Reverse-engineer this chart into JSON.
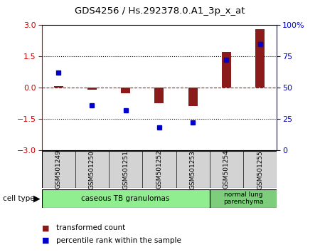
{
  "title": "GDS4256 / Hs.292378.0.A1_3p_x_at",
  "samples": [
    "GSM501249",
    "GSM501250",
    "GSM501251",
    "GSM501252",
    "GSM501253",
    "GSM501254",
    "GSM501255"
  ],
  "transformed_count": [
    0.07,
    -0.1,
    -0.28,
    -0.75,
    -0.9,
    1.7,
    2.8
  ],
  "percentile_rank": [
    62,
    36,
    32,
    18,
    22,
    72,
    85
  ],
  "ylim_left": [
    -3,
    3
  ],
  "ylim_right": [
    0,
    100
  ],
  "bar_color": "#8b1a1a",
  "point_color": "#0000cc",
  "zero_line_color": "#cc0000",
  "tick_color_left": "#cc0000",
  "tick_color_right": "#0000cc",
  "legend_items": [
    {
      "label": "transformed count",
      "color": "#8b1a1a"
    },
    {
      "label": "percentile rank within the sample",
      "color": "#0000cc"
    }
  ],
  "group1_label": "caseous TB granulomas",
  "group2_label": "normal lung\nparenchyma",
  "group1_color": "#90ee90",
  "group2_color": "#7dcd7d",
  "cell_type_label": "cell type"
}
